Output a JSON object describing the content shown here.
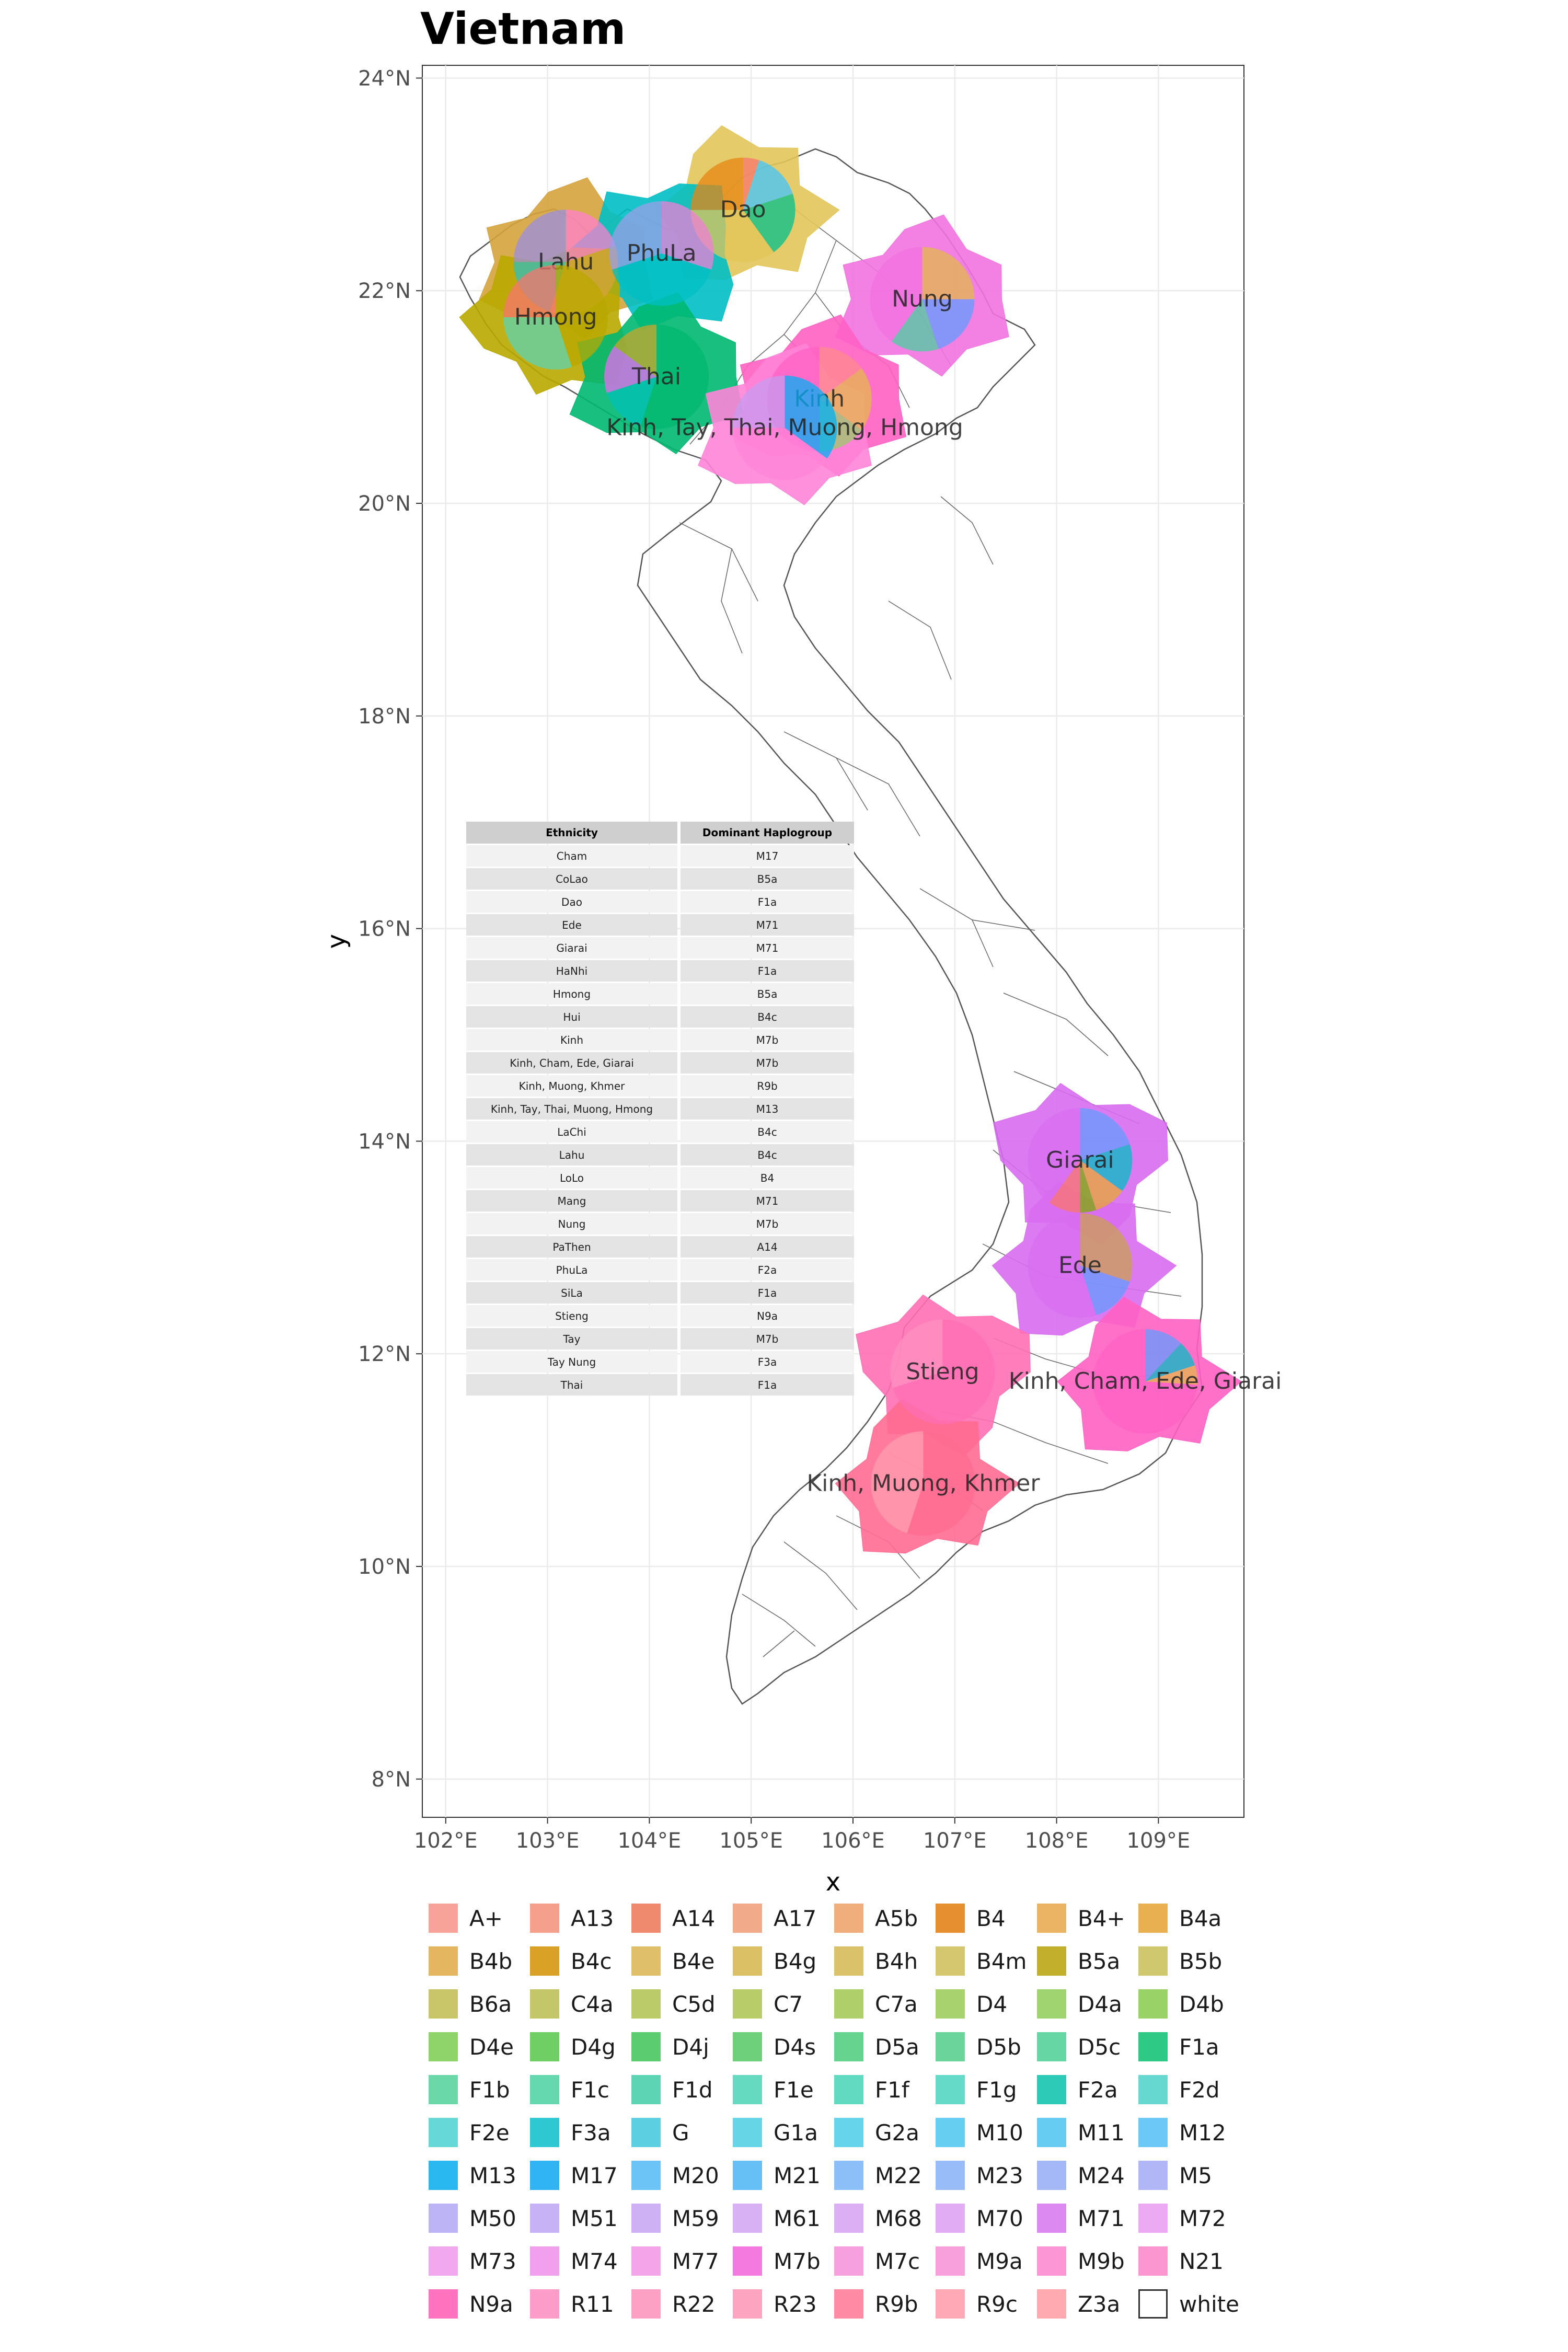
{
  "chart_data": {
    "type": "map",
    "title": "Vietnam",
    "xlabel": "x",
    "ylabel": "y",
    "x_ticks": [
      "102°E",
      "103°E",
      "104°E",
      "105°E",
      "106°E",
      "107°E",
      "108°E",
      "109°E"
    ],
    "y_ticks": [
      "8°N",
      "10°N",
      "12°N",
      "14°N",
      "16°N",
      "18°N",
      "20°N",
      "22°N",
      "24°N"
    ],
    "xlim": [
      101.77,
      109.84
    ],
    "ylim": [
      7.64,
      24.12
    ],
    "grid": true,
    "pies": [
      {
        "label": "Dao",
        "lon": 104.92,
        "lat": 22.76,
        "slices": [
          [
            "#f8766d",
            0.05
          ],
          [
            "#40c4ff",
            0.15
          ],
          [
            "#00c08b",
            0.2
          ],
          [
            "#e2c55a",
            0.35
          ],
          [
            "#e68613",
            0.25
          ]
        ]
      },
      {
        "label": "Lahu",
        "lon": 103.18,
        "lat": 22.27,
        "slices": [
          [
            "#ff7fcf",
            0.2
          ],
          [
            "#d6a33d",
            0.35
          ],
          [
            "#2fbfbf",
            0.2
          ],
          [
            "#9a8fe0",
            0.25
          ]
        ]
      },
      {
        "label": "PhuLa",
        "lon": 104.12,
        "lat": 22.35,
        "slices": [
          [
            "#f27fd8",
            0.3
          ],
          [
            "#00bfc4",
            0.4
          ],
          [
            "#9b9fea",
            0.3
          ]
        ]
      },
      {
        "label": "Nung",
        "lon": 106.68,
        "lat": 21.92,
        "slices": [
          [
            "#e3b84b",
            0.25
          ],
          [
            "#619cff",
            0.2
          ],
          [
            "#49d0a0",
            0.15
          ],
          [
            "#f272e0",
            0.4
          ]
        ]
      },
      {
        "label": "Hmong",
        "lon": 103.08,
        "lat": 21.75,
        "slices": [
          [
            "#b9a800",
            0.45
          ],
          [
            "#5ed4b0",
            0.3
          ],
          [
            "#f8766d",
            0.25
          ]
        ]
      },
      {
        "label": "Thai",
        "lon": 104.07,
        "lat": 21.19,
        "slices": [
          [
            "#00b870",
            0.55
          ],
          [
            "#00c0b8",
            0.15
          ],
          [
            "#e76bf3",
            0.15
          ],
          [
            "#c8a62a",
            0.15
          ]
        ]
      },
      {
        "label": "Kinh",
        "lon": 105.67,
        "lat": 20.98,
        "slices": [
          [
            "#ff8a8a",
            0.15
          ],
          [
            "#e6b84a",
            0.2
          ],
          [
            "#9bc96a",
            0.15
          ],
          [
            "#ff61c3",
            0.5
          ]
        ]
      },
      {
        "label": "Kinh, Tay, Thai, Muong, Hmong",
        "lon": 105.33,
        "lat": 20.71,
        "slices": [
          [
            "#00b0f6",
            0.35
          ],
          [
            "#ff84d8",
            0.4
          ],
          [
            "#c79bf0",
            0.25
          ]
        ]
      },
      {
        "label": "Giarai",
        "lon": 108.23,
        "lat": 13.82,
        "slices": [
          [
            "#619cff",
            0.2
          ],
          [
            "#00bfc4",
            0.15
          ],
          [
            "#e8a830",
            0.1
          ],
          [
            "#7cae00",
            0.05
          ],
          [
            "#f8766d",
            0.1
          ],
          [
            "#d86df0",
            0.4
          ]
        ]
      },
      {
        "label": "Ede",
        "lon": 108.23,
        "lat": 12.83,
        "slices": [
          [
            "#c9a050",
            0.3
          ],
          [
            "#619cff",
            0.15
          ],
          [
            "#d86df0",
            0.55
          ]
        ]
      },
      {
        "label": "Stieng",
        "lon": 106.88,
        "lat": 11.83,
        "slices": [
          [
            "#ff6fb4",
            0.7
          ],
          [
            "#ff90c0",
            0.3
          ]
        ]
      },
      {
        "label": "Kinh, Cham, Ede, Giarai",
        "lon": 108.87,
        "lat": 11.74,
        "slices": [
          [
            "#619cff",
            0.12
          ],
          [
            "#00bfc4",
            0.08
          ],
          [
            "#e6b84a",
            0.06
          ],
          [
            "#ff61c3",
            0.74
          ]
        ]
      },
      {
        "label": "Kinh, Muong, Khmer",
        "lon": 106.69,
        "lat": 10.78,
        "slices": [
          [
            "#ff6c91",
            0.55
          ],
          [
            "#ff9db0",
            0.45
          ]
        ]
      }
    ]
  },
  "table": {
    "headers": [
      "Ethnicity",
      "Dominant Haplogroup"
    ],
    "rows": [
      [
        "Cham",
        "M17"
      ],
      [
        "CoLao",
        "B5a"
      ],
      [
        "Dao",
        "F1a"
      ],
      [
        "Ede",
        "M71"
      ],
      [
        "Giarai",
        "M71"
      ],
      [
        "HaNhi",
        "F1a"
      ],
      [
        "Hmong",
        "B5a"
      ],
      [
        "Hui",
        "B4c"
      ],
      [
        "Kinh",
        "M7b"
      ],
      [
        "Kinh, Cham, Ede, Giarai",
        "M7b"
      ],
      [
        "Kinh, Muong, Khmer",
        "R9b"
      ],
      [
        "Kinh, Tay, Thai, Muong, Hmong",
        "M13"
      ],
      [
        "LaChi",
        "B4c"
      ],
      [
        "Lahu",
        "B4c"
      ],
      [
        "LoLo",
        "B4"
      ],
      [
        "Mang",
        "M71"
      ],
      [
        "Nung",
        "M7b"
      ],
      [
        "PaThen",
        "A14"
      ],
      [
        "PhuLa",
        "F2a"
      ],
      [
        "SiLa",
        "F1a"
      ],
      [
        "Stieng",
        "N9a"
      ],
      [
        "Tay",
        "M7b"
      ],
      [
        "Tay Nung",
        "F3a"
      ],
      [
        "Thai",
        "F1a"
      ]
    ]
  },
  "legend": [
    {
      "label": "A+",
      "color": "#f8a39a"
    },
    {
      "label": "A13",
      "color": "#f5a08c"
    },
    {
      "label": "A14",
      "color": "#f08a6e"
    },
    {
      "label": "A17",
      "color": "#f2ab8a"
    },
    {
      "label": "A5b",
      "color": "#efae7c"
    },
    {
      "label": "B4",
      "color": "#e68f30"
    },
    {
      "label": "B4+",
      "color": "#ebb465"
    },
    {
      "label": "B4a",
      "color": "#e8b050"
    },
    {
      "label": "B4b",
      "color": "#e5b660"
    },
    {
      "label": "B4c",
      "color": "#d9a126"
    },
    {
      "label": "B4e",
      "color": "#e0bf6a"
    },
    {
      "label": "B4g",
      "color": "#dcc066"
    },
    {
      "label": "B4h",
      "color": "#d9c26a"
    },
    {
      "label": "B4m",
      "color": "#d5c670"
    },
    {
      "label": "B5a",
      "color": "#c2af2b"
    },
    {
      "label": "B5b",
      "color": "#cfc86e"
    },
    {
      "label": "B6a",
      "color": "#c9c66a"
    },
    {
      "label": "C4a",
      "color": "#c3c76a"
    },
    {
      "label": "C5d",
      "color": "#bccb6a"
    },
    {
      "label": "C7",
      "color": "#b8cc6a"
    },
    {
      "label": "C7a",
      "color": "#afcf6a"
    },
    {
      "label": "D4",
      "color": "#a7d26e"
    },
    {
      "label": "D4a",
      "color": "#a0d470"
    },
    {
      "label": "D4b",
      "color": "#99d368"
    },
    {
      "label": "D4e",
      "color": "#8fd46a"
    },
    {
      "label": "D4g",
      "color": "#6fcf64"
    },
    {
      "label": "D4j",
      "color": "#5ccc70"
    },
    {
      "label": "D4s",
      "color": "#6ed07a"
    },
    {
      "label": "D5a",
      "color": "#66d48e"
    },
    {
      "label": "D5b",
      "color": "#6ad49a"
    },
    {
      "label": "D5c",
      "color": "#66d6a4"
    },
    {
      "label": "F1a",
      "color": "#2ec985"
    },
    {
      "label": "F1b",
      "color": "#6ad8a8"
    },
    {
      "label": "F1c",
      "color": "#66d8b0"
    },
    {
      "label": "F1d",
      "color": "#5dd5b4"
    },
    {
      "label": "F1e",
      "color": "#66dac0"
    },
    {
      "label": "F1f",
      "color": "#62dac2"
    },
    {
      "label": "F1g",
      "color": "#66dac8"
    },
    {
      "label": "F2a",
      "color": "#2dcab8"
    },
    {
      "label": "F2d",
      "color": "#66d8d0"
    },
    {
      "label": "F2e",
      "color": "#66d8d8"
    },
    {
      "label": "F3a",
      "color": "#2ec8d2"
    },
    {
      "label": "G",
      "color": "#5cd0e0"
    },
    {
      "label": "G1a",
      "color": "#66d6e6"
    },
    {
      "label": "G2a",
      "color": "#66d4ea"
    },
    {
      "label": "M10",
      "color": "#66cef0"
    },
    {
      "label": "M11",
      "color": "#66ccf2"
    },
    {
      "label": "M12",
      "color": "#6cc8f6"
    },
    {
      "label": "M13",
      "color": "#2ab8f0"
    },
    {
      "label": "M17",
      "color": "#30b4f4"
    },
    {
      "label": "M20",
      "color": "#6cc4f6"
    },
    {
      "label": "M21",
      "color": "#66c0f6"
    },
    {
      "label": "M22",
      "color": "#8cbef8"
    },
    {
      "label": "M23",
      "color": "#98bcf8"
    },
    {
      "label": "M24",
      "color": "#a4b8f8"
    },
    {
      "label": "M5",
      "color": "#b0b6f6"
    },
    {
      "label": "M50",
      "color": "#bcb4f4"
    },
    {
      "label": "M51",
      "color": "#c6b2f4"
    },
    {
      "label": "M59",
      "color": "#ceb0f4"
    },
    {
      "label": "M61",
      "color": "#d8b0f4"
    },
    {
      "label": "M68",
      "color": "#dcaef4"
    },
    {
      "label": "M70",
      "color": "#e2acf4"
    },
    {
      "label": "M71",
      "color": "#dc8af2"
    },
    {
      "label": "M72",
      "color": "#ecaaf2"
    },
    {
      "label": "M73",
      "color": "#f2a8ee"
    },
    {
      "label": "M74",
      "color": "#f0a0ec"
    },
    {
      "label": "M77",
      "color": "#f4a4e8"
    },
    {
      "label": "M7b",
      "color": "#f47ae0"
    },
    {
      "label": "M7c",
      "color": "#f6a0e0"
    },
    {
      "label": "M9a",
      "color": "#f8a0dc"
    },
    {
      "label": "M9b",
      "color": "#fc96d4"
    },
    {
      "label": "N21",
      "color": "#fc96d0"
    },
    {
      "label": "N9a",
      "color": "#ff72be"
    },
    {
      "label": "R11",
      "color": "#fc9cc8"
    },
    {
      "label": "R22",
      "color": "#fca0c4"
    },
    {
      "label": "R23",
      "color": "#fca4c0"
    },
    {
      "label": "R9b",
      "color": "#ff8aa4"
    },
    {
      "label": "R9c",
      "color": "#ffa8b6"
    },
    {
      "label": "Z3a",
      "color": "#ffaab0"
    },
    {
      "label": "white",
      "color": "#ffffff"
    }
  ]
}
